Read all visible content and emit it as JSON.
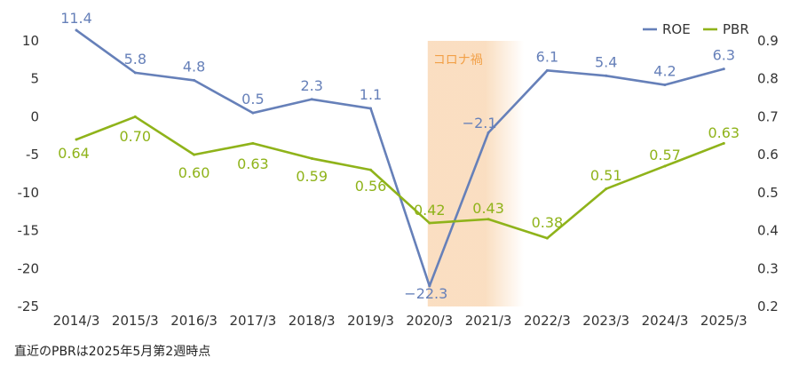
{
  "chart_data": {
    "type": "line",
    "categories": [
      "2014/3",
      "2015/3",
      "2016/3",
      "2017/3",
      "2018/3",
      "2019/3",
      "2020/3",
      "2021/3",
      "2022/3",
      "2023/3",
      "2024/3",
      "2025/3"
    ],
    "series": [
      {
        "name": "ROE",
        "axis": "left",
        "color": "#6680b9",
        "values": [
          11.4,
          5.8,
          4.8,
          0.5,
          2.3,
          1.1,
          -22.3,
          -2.1,
          6.1,
          5.4,
          4.2,
          6.3
        ],
        "labels": [
          "11.4",
          "5.8",
          "4.8",
          "0.5",
          "2.3",
          "1.1",
          "−22.3",
          "−2.1",
          "6.1",
          "5.4",
          "4.2",
          "6.3"
        ]
      },
      {
        "name": "PBR",
        "axis": "right",
        "color": "#8fb31a",
        "values": [
          0.64,
          0.7,
          0.6,
          0.63,
          0.59,
          0.56,
          0.42,
          0.43,
          0.38,
          0.51,
          0.57,
          0.63
        ],
        "labels": [
          "0.64",
          "0.70",
          "0.60",
          "0.63",
          "0.59",
          "0.56",
          "0.42",
          "0.43",
          "0.38",
          "0.51",
          "0.57",
          "0.63"
        ]
      }
    ],
    "y_left": {
      "min": -25,
      "max": 10,
      "ticks": [
        "10",
        "5",
        "0",
        "-5",
        "-10",
        "-15",
        "-20",
        "-25"
      ]
    },
    "y_right": {
      "min": 0.2,
      "max": 0.9,
      "ticks": [
        "0.9",
        "0.8",
        "0.7",
        "0.6",
        "0.5",
        "0.4",
        "0.3",
        "0.2"
      ]
    },
    "shaded_region": {
      "label": "コロナ禍",
      "from": "2020/3",
      "to": "2021/3",
      "color": "#f6c48f"
    },
    "legend_position": "top-right",
    "grid": false
  },
  "footnote": "直近のPBRは2025年5月第2週時点"
}
